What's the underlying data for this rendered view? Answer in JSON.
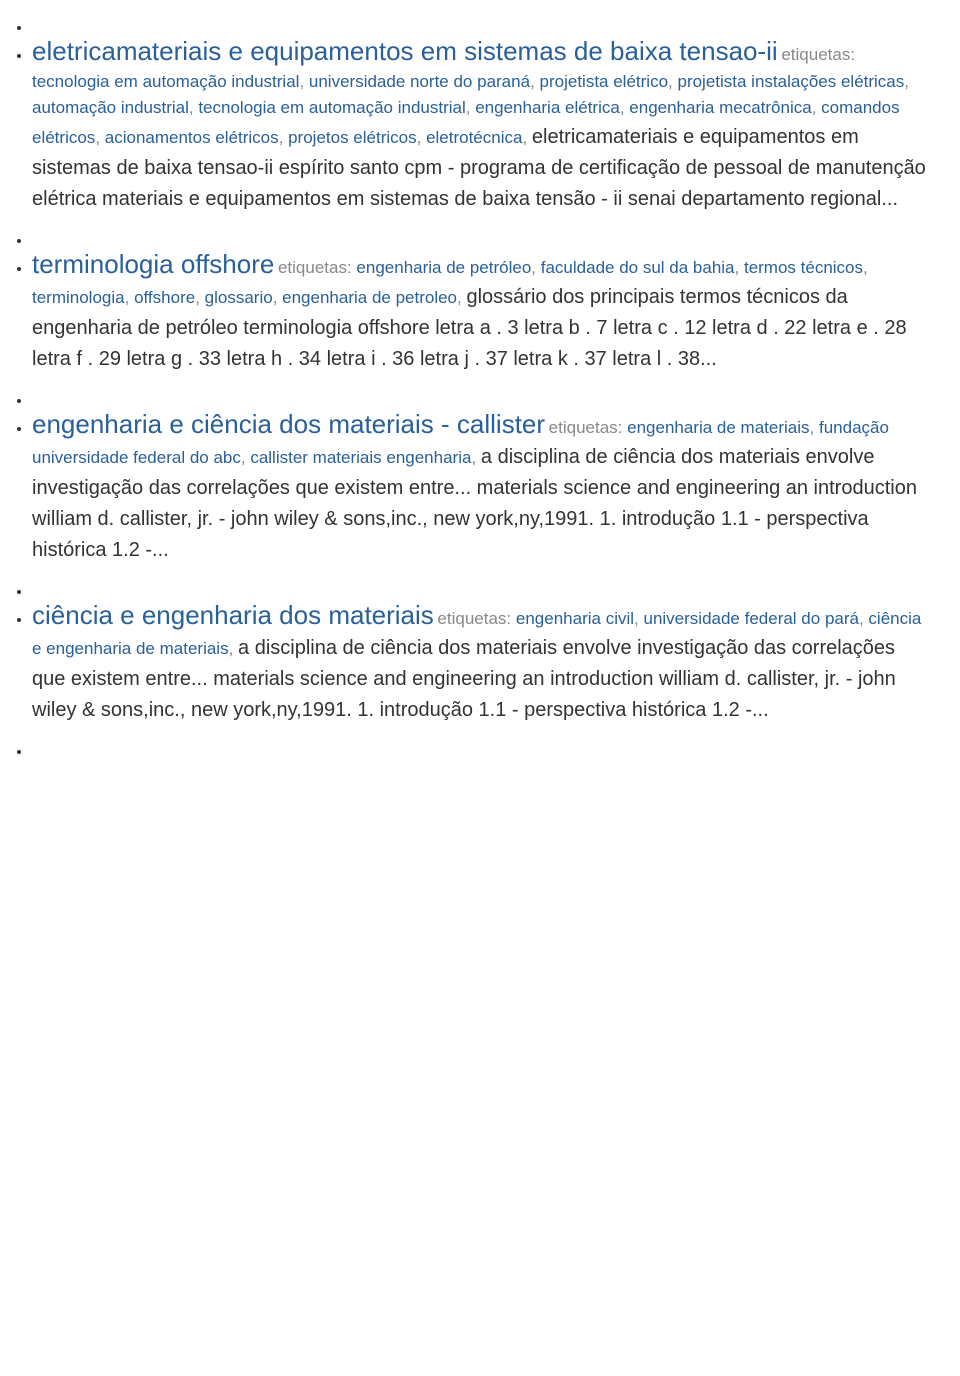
{
  "colors": {
    "link": "#2a6099",
    "text": "#333333",
    "muted": "#888888",
    "background": "#ffffff"
  },
  "typography": {
    "title_fontsize": 26,
    "tag_fontsize": 17,
    "desc_fontsize": 20,
    "font_family": "Arial"
  },
  "labels": {
    "etiquetas": "etiquetas:"
  },
  "entries": [
    {
      "title": "eletricamateriais e equipamentos em sistemas de baixa tensao-ii",
      "tags": [
        "tecnologia em automação industrial",
        "universidade norte do paraná",
        "projetista elétrico",
        "projetista instalações elétricas",
        "automação industrial",
        "tecnologia em automação industrial",
        "engenharia elétrica",
        "engenharia mecatrônica",
        "comandos elétricos",
        "acionamentos elétricos",
        "projetos elétricos",
        "eletrotécnica"
      ],
      "description": " eletricamateriais e equipamentos em sistemas de baixa tensao-ii espírito santo cpm - programa de certificação de pessoal de manutenção elétrica materiais e equipamentos em sistemas de baixa tensão - ii senai departamento regional..."
    },
    {
      "title": "terminologia offshore",
      "tags": [
        "engenharia de petróleo",
        "faculdade do sul da bahia",
        "termos técnicos",
        "terminologia",
        "offshore",
        "glossario",
        "engenharia de petroleo"
      ],
      "description": " glossário dos principais termos técnicos da engenharia de petróleo terminologia offshore letra a . 3 letra b . 7 letra c . 12 letra d . 22 letra e . 28 letra f . 29 letra g . 33 letra h . 34 letra i . 36 letra j . 37 letra k . 37 letra l . 38..."
    },
    {
      "title": "engenharia e ciência dos materiais - callister",
      "tags": [
        "engenharia de materiais",
        "fundação universidade federal do abc",
        "callister materiais engenharia"
      ],
      "description": " a disciplina de ciência dos materiais envolve investigação das correlações que existem entre... materials science and engineering an introduction william d. callister, jr. - john wiley & sons,inc., new york,ny,1991. 1. introdução 1.1 - perspectiva histórica 1.2 -..."
    },
    {
      "title": "ciência e engenharia dos materiais",
      "tags": [
        "engenharia civil",
        "universidade federal do pará",
        "ciência e engenharia de materiais"
      ],
      "description": " a disciplina de ciência dos materiais envolve investigação das correlações que existem entre... materials science and engineering an introduction william d. callister, jr. - john wiley & sons,inc., new york,ny,1991. 1. introdução 1.1 - perspectiva histórica 1.2 -..."
    }
  ]
}
